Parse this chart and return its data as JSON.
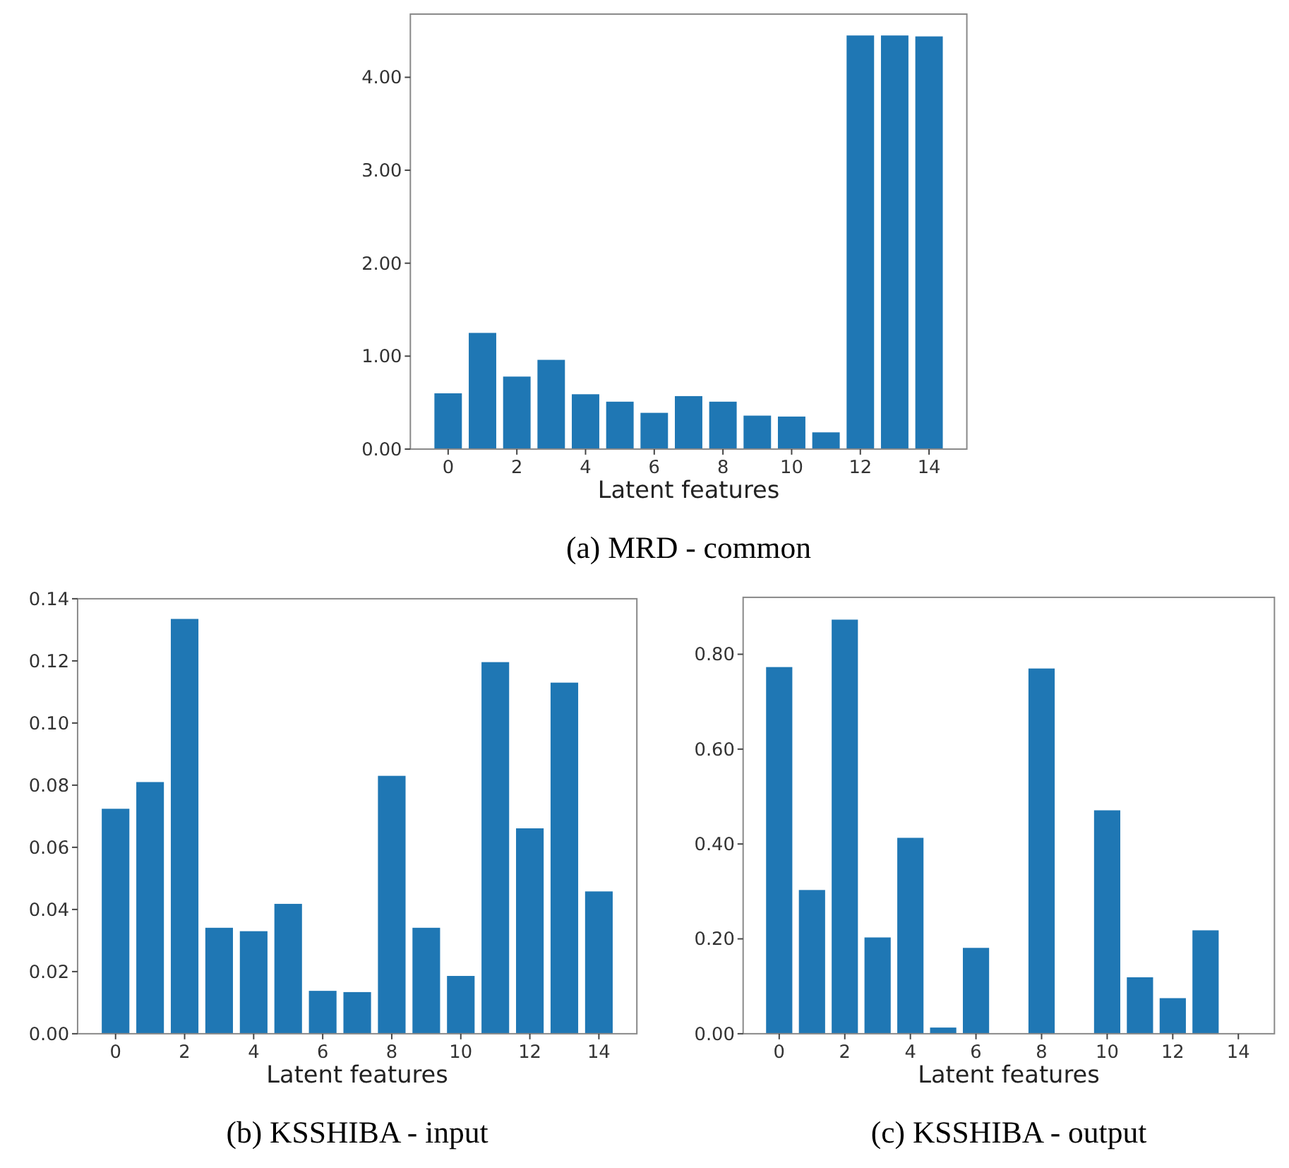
{
  "chart_data": [
    {
      "type": "bar",
      "title": "(a) MRD - common",
      "xlabel": "Latent features",
      "x": [
        0,
        1,
        2,
        3,
        4,
        5,
        6,
        7,
        8,
        9,
        10,
        11,
        12,
        13,
        14
      ],
      "values": [
        0.6,
        1.25,
        0.78,
        0.96,
        0.59,
        0.51,
        0.39,
        0.57,
        0.51,
        0.36,
        0.35,
        0.18,
        4.45,
        4.45,
        4.44
      ],
      "color": "#1f77b4",
      "xlim": [
        -1.1,
        15.1
      ],
      "xticks": [
        0,
        2,
        4,
        6,
        8,
        10,
        12,
        14
      ],
      "ylim": [
        0,
        4.68
      ],
      "yticks": [
        {
          "value": 0,
          "label": "0.00"
        },
        {
          "value": 1,
          "label": "1.00"
        },
        {
          "value": 2,
          "label": "2.00"
        },
        {
          "value": 3,
          "label": "3.00"
        },
        {
          "value": 4,
          "label": "4.00"
        }
      ],
      "grid": false
    },
    {
      "type": "bar",
      "title": "(b) KSSHIBA - input",
      "xlabel": "Latent features",
      "x": [
        0,
        1,
        2,
        3,
        4,
        5,
        6,
        7,
        8,
        9,
        10,
        11,
        12,
        13,
        14
      ],
      "values": [
        0.0724,
        0.081,
        0.1335,
        0.0341,
        0.033,
        0.0418,
        0.0138,
        0.0134,
        0.083,
        0.0341,
        0.0186,
        0.1196,
        0.0661,
        0.113,
        0.0458
      ],
      "color": "#1f77b4",
      "xlim": [
        -1.1,
        15.1
      ],
      "xticks": [
        0,
        2,
        4,
        6,
        8,
        10,
        12,
        14
      ],
      "ylim": [
        0,
        0.14
      ],
      "yticks": [
        {
          "value": 0,
          "label": "0.00"
        },
        {
          "value": 0.02,
          "label": "0.02"
        },
        {
          "value": 0.04,
          "label": "0.04"
        },
        {
          "value": 0.06,
          "label": "0.06"
        },
        {
          "value": 0.08,
          "label": "0.08"
        },
        {
          "value": 0.1,
          "label": "0.10"
        },
        {
          "value": 0.12,
          "label": "0.12"
        },
        {
          "value": 0.14,
          "label": "0.14"
        }
      ],
      "grid": false
    },
    {
      "type": "bar",
      "title": "(c) KSSHIBA - output",
      "xlabel": "Latent features",
      "x": [
        0,
        1,
        2,
        3,
        4,
        5,
        6,
        7,
        8,
        9,
        10,
        11,
        12,
        13,
        14
      ],
      "values": [
        0.773,
        0.303,
        0.873,
        0.203,
        0.413,
        0.013,
        0.181,
        0,
        0.77,
        0,
        0.471,
        0.119,
        0.075,
        0.218,
        0
      ],
      "color": "#1f77b4",
      "xlim": [
        -1.1,
        15.1
      ],
      "xticks": [
        0,
        2,
        4,
        6,
        8,
        10,
        12,
        14
      ],
      "ylim": [
        0,
        0.92
      ],
      "yticks": [
        {
          "value": 0,
          "label": "0.00"
        },
        {
          "value": 0.2,
          "label": "0.20"
        },
        {
          "value": 0.4,
          "label": "0.40"
        },
        {
          "value": 0.6,
          "label": "0.60"
        },
        {
          "value": 0.8,
          "label": "0.80"
        }
      ],
      "grid": false
    }
  ]
}
